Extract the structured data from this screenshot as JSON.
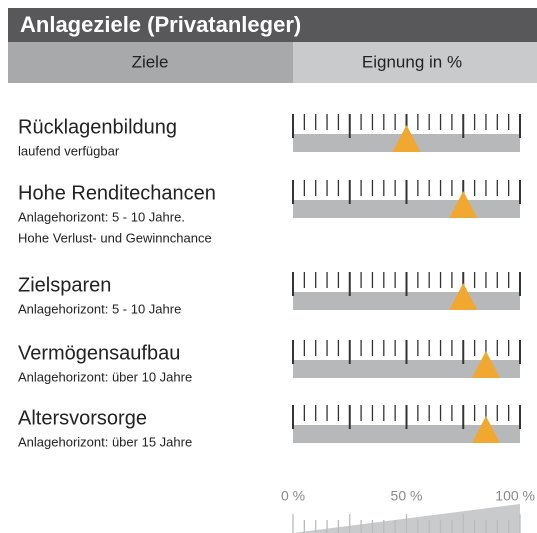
{
  "chart_data": {
    "type": "gauge",
    "title": "Anlageziele (Privatanleger)",
    "headers": [
      "Ziele",
      "Eignung in %"
    ],
    "categories": [
      "Rücklagenbildung",
      "Hohe Renditechancen",
      "Zielsparen",
      "Vermögensaufbau",
      "Altersvorsorge"
    ],
    "descriptions": [
      [
        "laufend verfügbar"
      ],
      [
        "Anlagehorizont: 5 - 10 Jahre.",
        "Hohe Verlust-  und Gewinnchance"
      ],
      [
        "Anlagehorizont: 5 - 10 Jahre"
      ],
      [
        "Anlagehorizont: über 10 Jahre"
      ],
      [
        "Anlagehorizont: über 15 Jahre"
      ]
    ],
    "values": [
      50,
      75,
      75,
      85,
      85
    ],
    "color": "#f0a830",
    "xlim": [
      0,
      100
    ],
    "xticks": [
      {
        "value": 0,
        "label": "0 %"
      },
      {
        "value": 50,
        "label": "50 %"
      },
      {
        "value": 100,
        "label": "100 %"
      }
    ],
    "gauge_ticks": [
      0,
      5,
      10,
      15,
      20,
      25,
      30,
      35,
      40,
      45,
      50,
      55,
      60,
      65,
      70,
      75,
      80,
      85,
      90,
      95,
      100
    ],
    "gauge_major_ticks": [
      0,
      25,
      50,
      75,
      100
    ]
  }
}
